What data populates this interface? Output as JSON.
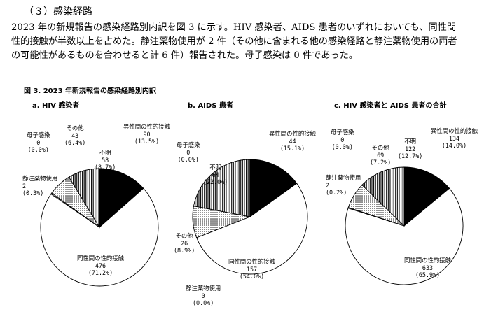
{
  "section": {
    "heading": "（３）感染経路"
  },
  "paragraph": [
    "2023 年の新規報告の感染経路別内訳を図 3 に示す。HIV 感染者、AIDS 患者のいずれにおいても、同性間",
    "性的接触が半数以上を占めた。静注薬物使用が 2 件（その他に含まれる他の感染経路と静注薬物使用の両者",
    "の可能性があるものを合わせると計 6 件）報告された。母子感染は 0 件であった。"
  ],
  "figure": {
    "title": "図 3.  2023 年新規報告の感染経路別内訳"
  },
  "chart_data": [
    {
      "type": "pie",
      "title": "a.  HIV 感染者",
      "slices": [
        {
          "label": "異性間の性的接触",
          "value": 90,
          "percent": "(13.5%)",
          "fill": "black"
        },
        {
          "label": "同性間の性的接触",
          "value": 476,
          "percent": "(71.2%)",
          "fill": "white"
        },
        {
          "label": "静注薬物使用",
          "value": 2,
          "percent": "(0.3%)",
          "fill": "white"
        },
        {
          "label": "母子感染",
          "value": 0,
          "percent": "(0.0%)",
          "fill": "white"
        },
        {
          "label": "その他",
          "value": 43,
          "percent": "(6.4%)",
          "fill": "dots"
        },
        {
          "label": "不明",
          "value": 58,
          "percent": "(8.7%)",
          "fill": "stripes"
        }
      ]
    },
    {
      "type": "pie",
      "title": "b.  AIDS 患者",
      "slices": [
        {
          "label": "異性間の性的接触",
          "value": 44,
          "percent": "(15.1%)",
          "fill": "black"
        },
        {
          "label": "同性間の性的接触",
          "value": 157,
          "percent": "(54.0%)",
          "fill": "white"
        },
        {
          "label": "静注薬物使用",
          "value": 0,
          "percent": "(0.0%)",
          "fill": "white"
        },
        {
          "label": "母子感染",
          "value": 0,
          "percent": "(0.0%)",
          "fill": "white"
        },
        {
          "label": "その他",
          "value": 26,
          "percent": "(8.9%)",
          "fill": "dots"
        },
        {
          "label": "不明",
          "value": 64,
          "percent": "(22.0%)",
          "fill": "stripes"
        }
      ]
    },
    {
      "type": "pie",
      "title": "c.  HIV 感染者と AIDS 患者の合計",
      "slices": [
        {
          "label": "異性間の性的接触",
          "value": 134,
          "percent": "(14.0%)",
          "fill": "black"
        },
        {
          "label": "同性間の性的接触",
          "value": 633,
          "percent": "(65.9%)",
          "fill": "white"
        },
        {
          "label": "静注薬物使用",
          "value": 2,
          "percent": "(0.2%)",
          "fill": "white"
        },
        {
          "label": "母子感染",
          "value": 0,
          "percent": "(0.0%)",
          "fill": "white"
        },
        {
          "label": "その他",
          "value": 69,
          "percent": "(7.2%)",
          "fill": "dots"
        },
        {
          "label": "不明",
          "value": 122,
          "percent": "(12.7%)",
          "fill": "stripes"
        }
      ]
    }
  ]
}
